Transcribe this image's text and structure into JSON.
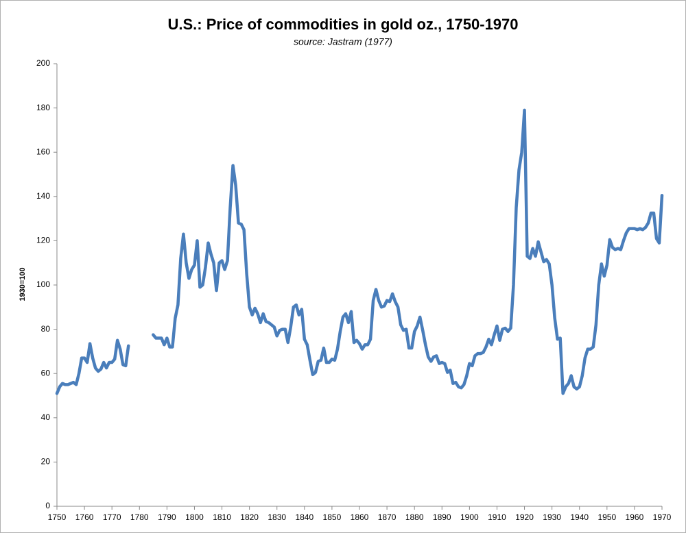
{
  "chart_data": {
    "type": "line",
    "title": "U.S.: Price of commodities in gold oz., 1750-1970",
    "subtitle": "source: Jastram (1977)",
    "y_label": "1930=100",
    "x": [
      1750,
      1751,
      1752,
      1753,
      1754,
      1755,
      1756,
      1757,
      1758,
      1759,
      1760,
      1761,
      1762,
      1763,
      1764,
      1765,
      1766,
      1767,
      1768,
      1769,
      1770,
      1771,
      1772,
      1773,
      1774,
      1775,
      1776,
      1780,
      1785,
      1786,
      1787,
      1788,
      1789,
      1790,
      1791,
      1792,
      1793,
      1794,
      1795,
      1796,
      1797,
      1798,
      1799,
      1800,
      1801,
      1802,
      1803,
      1804,
      1805,
      1806,
      1807,
      1808,
      1809,
      1810,
      1811,
      1812,
      1813,
      1814,
      1815,
      1816,
      1817,
      1818,
      1819,
      1820,
      1821,
      1822,
      1823,
      1824,
      1825,
      1826,
      1827,
      1828,
      1829,
      1830,
      1831,
      1832,
      1833,
      1834,
      1835,
      1836,
      1837,
      1838,
      1839,
      1840,
      1841,
      1842,
      1843,
      1844,
      1845,
      1846,
      1847,
      1848,
      1849,
      1850,
      1851,
      1852,
      1853,
      1854,
      1855,
      1856,
      1857,
      1858,
      1859,
      1860,
      1861,
      1862,
      1863,
      1864,
      1865,
      1866,
      1867,
      1868,
      1869,
      1870,
      1871,
      1872,
      1873,
      1874,
      1875,
      1876,
      1877,
      1878,
      1879,
      1880,
      1881,
      1882,
      1883,
      1884,
      1885,
      1886,
      1887,
      1888,
      1889,
      1890,
      1891,
      1892,
      1893,
      1894,
      1895,
      1896,
      1897,
      1898,
      1899,
      1900,
      1901,
      1902,
      1903,
      1904,
      1905,
      1906,
      1907,
      1908,
      1909,
      1910,
      1911,
      1912,
      1913,
      1914,
      1915,
      1916,
      1917,
      1918,
      1919,
      1920,
      1921,
      1922,
      1923,
      1924,
      1925,
      1926,
      1927,
      1928,
      1929,
      1930,
      1931,
      1932,
      1933,
      1934,
      1935,
      1936,
      1937,
      1938,
      1939,
      1940,
      1941,
      1942,
      1943,
      1944,
      1945,
      1946,
      1947,
      1948,
      1949,
      1950,
      1951,
      1952,
      1953,
      1954,
      1955,
      1956,
      1957,
      1958,
      1959,
      1960,
      1961,
      1962,
      1963,
      1964,
      1965,
      1966,
      1967,
      1968,
      1969,
      1970
    ],
    "series": [
      {
        "name": "Price of commodities in gold oz.",
        "color": "#4a7ebb",
        "values": [
          51,
          54,
          55.5,
          55,
          55,
          55.5,
          56,
          55,
          60,
          67,
          67,
          65,
          73.5,
          67,
          62.5,
          61,
          62,
          65,
          62.5,
          65,
          65,
          66.5,
          75,
          71,
          64,
          63.5,
          72.5,
          null,
          77.5,
          76,
          76,
          76,
          73,
          76,
          72,
          72,
          85,
          91,
          112,
          123,
          110,
          103,
          107,
          109,
          120,
          99,
          100,
          108,
          119,
          114,
          110,
          97.5,
          110,
          111,
          107,
          111,
          135,
          154,
          145,
          128,
          127.5,
          125,
          105,
          90,
          86.5,
          89.5,
          87,
          83,
          87,
          83.5,
          83,
          82,
          81,
          77,
          79.5,
          80,
          80,
          74,
          81,
          90,
          91,
          86.5,
          89,
          75.5,
          73,
          66,
          59.5,
          60.5,
          65.5,
          66,
          71.5,
          65,
          65,
          66.5,
          66,
          71,
          79,
          85.5,
          87,
          83,
          88,
          74,
          75,
          73.5,
          71,
          73,
          73,
          75.5,
          93,
          98,
          93,
          90,
          90.5,
          93,
          92.5,
          96,
          92.5,
          90,
          82,
          79.5,
          80,
          71.5,
          71.5,
          79,
          81.5,
          85.5,
          79.5,
          73,
          67.5,
          65.5,
          67.5,
          68,
          64.5,
          65,
          64.5,
          60.5,
          61.5,
          55.5,
          56,
          54,
          53.5,
          55,
          59,
          64.5,
          63.5,
          68,
          69,
          69,
          69.5,
          72,
          75.5,
          73,
          77.5,
          81.5,
          75,
          80,
          80.5,
          79,
          80.5,
          100,
          135,
          152,
          160,
          179,
          113,
          112,
          116.5,
          113,
          119.5,
          115,
          110.5,
          111.5,
          109.5,
          100,
          85,
          75.5,
          76,
          51,
          54,
          55.5,
          59,
          54,
          53,
          54,
          59,
          67,
          71,
          71,
          72,
          82,
          100,
          109.5,
          104,
          109,
          120.5,
          117,
          116,
          116.5,
          116,
          120,
          123.5,
          125.5,
          125.5,
          125.5,
          125,
          125.5,
          125,
          126,
          128,
          132.5,
          132.5,
          121,
          119,
          140.5
        ]
      }
    ],
    "xlim": [
      1750,
      1970
    ],
    "xticks": [
      1750,
      1760,
      1770,
      1780,
      1790,
      1800,
      1810,
      1820,
      1830,
      1840,
      1850,
      1860,
      1870,
      1880,
      1890,
      1900,
      1910,
      1920,
      1930,
      1940,
      1950,
      1960,
      1970
    ],
    "ylim": [
      0,
      200
    ],
    "yticks": [
      0,
      20,
      40,
      60,
      80,
      100,
      120,
      140,
      160,
      180,
      200
    ]
  }
}
